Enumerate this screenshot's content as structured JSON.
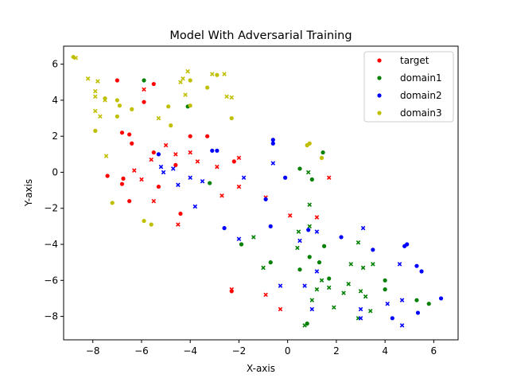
{
  "chart_data": {
    "type": "scatter",
    "title": "Model With Adversarial Training",
    "xlabel": "X-axis",
    "ylabel": "Y-axis",
    "xlim": [
      -9.2,
      7.0
    ],
    "ylim": [
      -9.3,
      7.0
    ],
    "xticks": [
      -8,
      -6,
      -4,
      -2,
      0,
      2,
      4,
      6
    ],
    "yticks": [
      -8,
      -6,
      -4,
      -2,
      0,
      2,
      4,
      6
    ],
    "grid": false,
    "legend_position": "top-right",
    "series": [
      {
        "name": "target",
        "color": "#ff0000",
        "circles": [
          [
            -7.0,
            5.1
          ],
          [
            -5.9,
            3.9
          ],
          [
            -5.5,
            4.9
          ],
          [
            -6.8,
            2.2
          ],
          [
            -6.5,
            2.1
          ],
          [
            -6.4,
            1.6
          ],
          [
            -5.5,
            1.1
          ],
          [
            -4.0,
            2.0
          ],
          [
            -3.3,
            2.0
          ],
          [
            -4.6,
            0.4
          ],
          [
            -2.2,
            0.6
          ],
          [
            -7.4,
            -0.2
          ],
          [
            -6.8,
            -0.65
          ],
          [
            -6.75,
            -0.35
          ],
          [
            -6.5,
            -1.6
          ],
          [
            -5.3,
            -0.8
          ],
          [
            -4.4,
            -2.3
          ],
          [
            -2.3,
            -6.6
          ]
        ],
        "crosses": [
          [
            -5.9,
            4.6
          ],
          [
            -5.6,
            0.7
          ],
          [
            -5.0,
            1.5
          ],
          [
            -4.6,
            1.0
          ],
          [
            -4.0,
            1.1
          ],
          [
            -3.7,
            0.6
          ],
          [
            -2.9,
            0.3
          ],
          [
            -2.0,
            0.8
          ],
          [
            -6.3,
            0.1
          ],
          [
            -6.0,
            -0.4
          ],
          [
            -5.5,
            -1.6
          ],
          [
            -4.5,
            -2.9
          ],
          [
            -2.0,
            -0.8
          ],
          [
            -2.7,
            -1.3
          ],
          [
            -0.9,
            -1.4
          ],
          [
            0.1,
            -2.4
          ],
          [
            1.2,
            -2.5
          ],
          [
            1.7,
            -0.3
          ],
          [
            -0.9,
            -6.8
          ],
          [
            -0.3,
            -7.6
          ],
          [
            -2.3,
            -6.5
          ]
        ]
      },
      {
        "name": "domain1",
        "color": "#008000",
        "circles": [
          [
            -5.9,
            5.1
          ],
          [
            -4.1,
            3.65
          ],
          [
            1.45,
            1.1
          ],
          [
            0.5,
            0.2
          ],
          [
            1.0,
            -0.4
          ],
          [
            -3.2,
            -0.6
          ],
          [
            -1.9,
            -4.0
          ],
          [
            -0.7,
            -5.0
          ],
          [
            0.5,
            -5.4
          ],
          [
            0.9,
            -4.7
          ],
          [
            1.3,
            -5.0
          ],
          [
            1.5,
            -4.1
          ],
          [
            1.7,
            -5.9
          ],
          [
            4.0,
            -6.0
          ],
          [
            4.0,
            -6.5
          ],
          [
            5.8,
            -7.3
          ],
          [
            5.3,
            -7.1
          ],
          [
            0.8,
            -8.4
          ]
        ],
        "crosses": [
          [
            0.85,
            0.0
          ],
          [
            0.9,
            -1.8
          ],
          [
            0.45,
            -3.3
          ],
          [
            0.9,
            -3.0
          ],
          [
            -1.4,
            -3.6
          ],
          [
            -1.0,
            -5.3
          ],
          [
            0.4,
            -4.2
          ],
          [
            2.3,
            -6.7
          ],
          [
            2.6,
            -5.1
          ],
          [
            2.5,
            -6.2
          ],
          [
            1.4,
            -6.0
          ],
          [
            1.2,
            -6.5
          ],
          [
            1.7,
            -6.4
          ],
          [
            3.1,
            -5.3
          ],
          [
            3.5,
            -5.1
          ],
          [
            3.2,
            -6.9
          ],
          [
            2.9,
            -3.9
          ],
          [
            3.0,
            -6.6
          ],
          [
            1.0,
            -7.1
          ],
          [
            1.9,
            -7.5
          ],
          [
            0.7,
            -8.5
          ],
          [
            3.4,
            -7.7
          ],
          [
            2.9,
            -8.1
          ]
        ]
      },
      {
        "name": "domain2",
        "color": "#0000ff",
        "circles": [
          [
            -3.1,
            1.2
          ],
          [
            -2.9,
            1.2
          ],
          [
            -0.6,
            1.8
          ],
          [
            -0.6,
            1.6
          ],
          [
            -5.3,
            1.0
          ],
          [
            -0.1,
            -0.3
          ],
          [
            -0.9,
            -1.5
          ],
          [
            -2.6,
            -3.1
          ],
          [
            -0.7,
            -3.0
          ],
          [
            0.85,
            -3.2
          ],
          [
            2.2,
            -3.6
          ],
          [
            3.5,
            -4.3
          ],
          [
            4.8,
            -4.1
          ],
          [
            4.9,
            -4.0
          ],
          [
            5.3,
            -5.2
          ],
          [
            5.5,
            -5.5
          ],
          [
            6.3,
            -7.0
          ],
          [
            4.3,
            -8.1
          ],
          [
            5.35,
            -7.8
          ]
        ],
        "crosses": [
          [
            -5.2,
            0.3
          ],
          [
            -5.1,
            0.0
          ],
          [
            -4.7,
            0.2
          ],
          [
            -4.5,
            -0.7
          ],
          [
            -4.0,
            -0.3
          ],
          [
            -3.5,
            -0.5
          ],
          [
            -3.8,
            -1.9
          ],
          [
            -1.8,
            -0.3
          ],
          [
            -0.6,
            0.5
          ],
          [
            -2.0,
            -3.7
          ],
          [
            0.5,
            -3.8
          ],
          [
            1.2,
            -3.3
          ],
          [
            1.2,
            -5.5
          ],
          [
            0.7,
            -6.3
          ],
          [
            1.0,
            -7.6
          ],
          [
            -0.3,
            -6.3
          ],
          [
            3.1,
            -3.1
          ],
          [
            3.0,
            -7.6
          ],
          [
            3.0,
            -8.1
          ],
          [
            4.1,
            -7.3
          ],
          [
            4.7,
            -7.1
          ],
          [
            4.7,
            -8.5
          ],
          [
            4.6,
            -5.1
          ]
        ]
      },
      {
        "name": "domain3",
        "color": "#bfbf00",
        "circles": [
          [
            -8.8,
            6.4
          ],
          [
            -7.5,
            4.1
          ],
          [
            -7.0,
            4.0
          ],
          [
            -6.9,
            3.7
          ],
          [
            -6.4,
            3.5
          ],
          [
            -7.9,
            2.3
          ],
          [
            -7.0,
            3.1
          ],
          [
            -4.9,
            3.65
          ],
          [
            -4.8,
            2.6
          ],
          [
            -4.0,
            5.1
          ],
          [
            -3.3,
            4.7
          ],
          [
            -2.3,
            3.0
          ],
          [
            -2.9,
            5.4
          ],
          [
            -4.0,
            3.7
          ],
          [
            -7.2,
            -1.7
          ],
          [
            -5.9,
            -2.7
          ],
          [
            -5.6,
            -2.9
          ],
          [
            0.8,
            1.5
          ],
          [
            0.9,
            1.6
          ],
          [
            1.4,
            0.8
          ]
        ],
        "crosses": [
          [
            -8.7,
            6.35
          ],
          [
            -8.2,
            5.2
          ],
          [
            -7.8,
            5.05
          ],
          [
            -7.9,
            4.5
          ],
          [
            -7.9,
            4.2
          ],
          [
            -7.5,
            4.0
          ],
          [
            -7.9,
            3.4
          ],
          [
            -7.7,
            3.1
          ],
          [
            -7.45,
            0.9
          ],
          [
            -5.3,
            3.0
          ],
          [
            -4.1,
            5.6
          ],
          [
            -4.3,
            5.2
          ],
          [
            -4.4,
            5.0
          ],
          [
            -4.2,
            4.3
          ],
          [
            -3.1,
            5.45
          ],
          [
            -2.6,
            5.45
          ],
          [
            -2.5,
            4.2
          ],
          [
            -2.3,
            4.15
          ]
        ]
      }
    ]
  }
}
